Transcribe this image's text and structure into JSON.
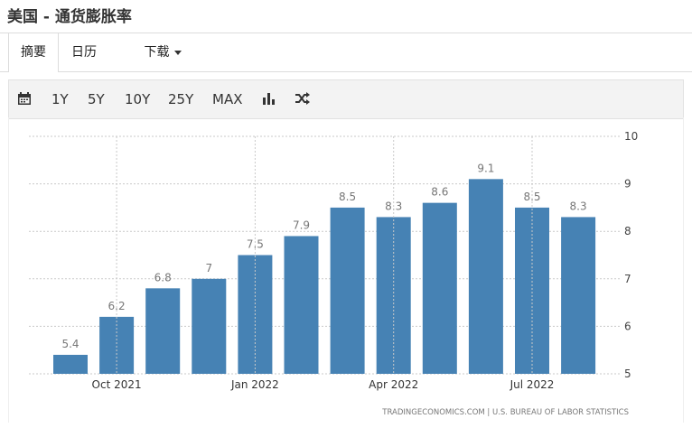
{
  "page": {
    "title": "美国 - 通货膨胀率"
  },
  "tabs": [
    {
      "label": "摘要",
      "active": true
    },
    {
      "label": "日历",
      "active": false
    },
    {
      "label": "下载",
      "active": false
    }
  ],
  "toolbar": {
    "ranges": [
      "1Y",
      "5Y",
      "10Y",
      "25Y",
      "MAX"
    ],
    "icons": [
      "calendar-icon",
      "bar-chart-icon",
      "shuffle-icon"
    ]
  },
  "colors": {
    "bar": "#4682b4",
    "grid": "#c9c9c9",
    "label": "#777777"
  },
  "chart_data": {
    "type": "bar",
    "categories": [
      "2021-09",
      "2021-10",
      "2021-11",
      "2021-12",
      "2022-01",
      "2022-02",
      "2022-03",
      "2022-04",
      "2022-05",
      "2022-06",
      "2022-07",
      "2022-08"
    ],
    "values": [
      5.4,
      6.2,
      6.8,
      7,
      7.5,
      7.9,
      8.5,
      8.3,
      8.6,
      9.1,
      8.5,
      8.3
    ],
    "value_labels": [
      "5.4",
      "6.2",
      "6.8",
      "7",
      "7.5",
      "7.9",
      "8.5",
      "8.3",
      "8.6",
      "9.1",
      "8.5",
      "8.3"
    ],
    "x_tick_labels": [
      "Oct 2021",
      "Jan 2022",
      "Apr 2022",
      "Jul 2022"
    ],
    "y_ticks": [
      5,
      6,
      7,
      8,
      9,
      10
    ],
    "ylim": [
      5,
      10
    ],
    "grid": true,
    "footer": "TRADINGECONOMICS.COM  |  U.S. BUREAU OF LABOR STATISTICS"
  }
}
